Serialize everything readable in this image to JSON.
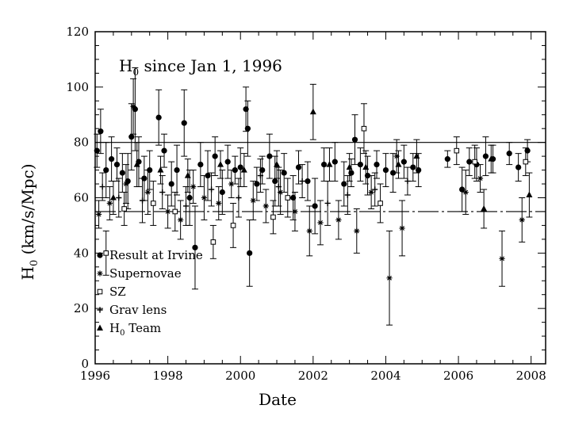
{
  "chart_data": {
    "type": "scatter",
    "title_main": "H",
    "title_sub": "0",
    "title_rest": " since Jan 1, 1996",
    "xlabel": "Date",
    "ylabel_main": "H",
    "ylabel_sub": "0",
    "ylabel_rest": " (km/s/Mpc)",
    "xlim": [
      1996,
      2008.4
    ],
    "ylim": [
      0,
      120
    ],
    "xticks": [
      1996,
      1998,
      2000,
      2002,
      2004,
      2006,
      2008
    ],
    "yticks": [
      0,
      20,
      40,
      60,
      80,
      100,
      120
    ],
    "grid": false,
    "reference_lines": [
      {
        "y": 80,
        "style": "solid"
      },
      {
        "y": 55,
        "style": "dashed"
      }
    ],
    "legend_placement": "bottom-left",
    "legend": [
      {
        "marker": "circle",
        "label": "Result at Irvine"
      },
      {
        "marker": "star",
        "label": "Supernovae"
      },
      {
        "marker": "square",
        "label": "SZ"
      },
      {
        "marker": "cross",
        "label": "Grav lens"
      },
      {
        "marker": "triangle",
        "label": "Team",
        "prefix": "H",
        "prefix_sub": "0"
      }
    ],
    "series": [
      {
        "name": "Result at Irvine",
        "marker": "circle",
        "points": [
          [
            1996.05,
            77,
            6
          ],
          [
            1996.15,
            84,
            8
          ],
          [
            1996.3,
            70,
            10
          ],
          [
            1996.45,
            74,
            8
          ],
          [
            1996.6,
            72,
            6
          ],
          [
            1996.75,
            69,
            7
          ],
          [
            1996.9,
            66,
            10
          ],
          [
            1997.0,
            82,
            12
          ],
          [
            1997.1,
            92,
            15
          ],
          [
            1997.2,
            73,
            9
          ],
          [
            1997.35,
            67,
            8
          ],
          [
            1997.5,
            70,
            7
          ],
          [
            1997.75,
            89,
            10
          ],
          [
            1997.9,
            77,
            6
          ],
          [
            1998.1,
            65,
            8
          ],
          [
            1998.25,
            70,
            9
          ],
          [
            1998.45,
            87,
            12
          ],
          [
            1998.6,
            60,
            10
          ],
          [
            1998.75,
            42,
            15
          ],
          [
            1998.9,
            72,
            8
          ],
          [
            1999.1,
            68,
            9
          ],
          [
            1999.3,
            75,
            7
          ],
          [
            1999.5,
            62,
            8
          ],
          [
            1999.65,
            73,
            6
          ],
          [
            1999.85,
            70,
            5
          ],
          [
            2000.0,
            71,
            7
          ],
          [
            2000.15,
            92,
            8
          ],
          [
            2000.2,
            85,
            10
          ],
          [
            2000.25,
            40,
            12
          ],
          [
            2000.45,
            65,
            6
          ],
          [
            2000.6,
            70,
            5
          ],
          [
            2000.8,
            75,
            8
          ],
          [
            2000.95,
            66,
            9
          ],
          [
            2001.2,
            69,
            7
          ],
          [
            2001.45,
            60,
            8
          ],
          [
            2001.6,
            71,
            6
          ],
          [
            2001.85,
            66,
            7
          ],
          [
            2002.05,
            57,
            10
          ],
          [
            2002.3,
            72,
            6
          ],
          [
            2002.6,
            73,
            7
          ],
          [
            2002.85,
            65,
            8
          ],
          [
            2003.05,
            69,
            5
          ],
          [
            2003.15,
            81,
            9
          ],
          [
            2003.3,
            72,
            6
          ],
          [
            2003.5,
            68,
            7
          ],
          [
            2003.75,
            72,
            5
          ],
          [
            2004.0,
            70,
            6
          ],
          [
            2004.2,
            69,
            7
          ],
          [
            2004.5,
            73,
            6
          ],
          [
            2004.75,
            71,
            5
          ],
          [
            2004.9,
            70,
            6
          ],
          [
            2005.7,
            74,
            3
          ],
          [
            2006.1,
            63,
            8
          ],
          [
            2006.3,
            73,
            5
          ],
          [
            2006.5,
            72,
            6
          ],
          [
            2006.75,
            75,
            7
          ],
          [
            2006.95,
            74,
            5
          ],
          [
            2007.4,
            76,
            4
          ],
          [
            2007.65,
            71,
            5
          ],
          [
            2007.9,
            77,
            4
          ]
        ]
      },
      {
        "name": "Supernovae",
        "marker": "star",
        "points": [
          [
            1996.1,
            54,
            5
          ],
          [
            1996.4,
            58,
            6
          ],
          [
            1996.85,
            65,
            7
          ],
          [
            1997.05,
            93,
            10
          ],
          [
            1997.45,
            62,
            8
          ],
          [
            1998.0,
            55,
            6
          ],
          [
            1998.35,
            52,
            7
          ],
          [
            1998.7,
            64,
            6
          ],
          [
            1999.0,
            60,
            8
          ],
          [
            1999.4,
            58,
            6
          ],
          [
            1999.75,
            65,
            5
          ],
          [
            2000.35,
            59,
            7
          ],
          [
            2000.7,
            57,
            6
          ],
          [
            2001.1,
            62,
            8
          ],
          [
            2001.5,
            55,
            7
          ],
          [
            2001.9,
            48,
            9
          ],
          [
            2002.2,
            51,
            8
          ],
          [
            2002.7,
            52,
            7
          ],
          [
            2003.2,
            48,
            8
          ],
          [
            2003.6,
            62,
            6
          ],
          [
            2004.1,
            31,
            17
          ],
          [
            2004.3,
            75,
            6
          ],
          [
            2004.45,
            49,
            10
          ],
          [
            2006.2,
            62,
            8
          ],
          [
            2006.6,
            67,
            5
          ],
          [
            2007.2,
            38,
            10
          ],
          [
            2007.75,
            52,
            8
          ]
        ]
      },
      {
        "name": "SZ",
        "marker": "square",
        "points": [
          [
            1996.3,
            40,
            8
          ],
          [
            1996.8,
            56,
            6
          ],
          [
            1997.6,
            58,
            8
          ],
          [
            1998.2,
            55,
            7
          ],
          [
            1999.25,
            44,
            6
          ],
          [
            1999.8,
            50,
            8
          ],
          [
            2000.9,
            53,
            6
          ],
          [
            2001.3,
            60,
            7
          ],
          [
            2003.4,
            85,
            9
          ],
          [
            2003.85,
            58,
            7
          ],
          [
            2005.95,
            77,
            5
          ],
          [
            2006.45,
            73,
            6
          ],
          [
            2007.85,
            73,
            5
          ]
        ]
      },
      {
        "name": "Grav lens",
        "marker": "cross",
        "points": [
          [
            1996.2,
            64,
            5
          ],
          [
            1996.65,
            60,
            7
          ],
          [
            1997.3,
            59,
            8
          ],
          [
            1997.85,
            62,
            6
          ],
          [
            1998.5,
            57,
            7
          ],
          [
            1999.2,
            63,
            6
          ],
          [
            1999.95,
            60,
            7
          ],
          [
            2000.55,
            68,
            6
          ],
          [
            2001.05,
            64,
            7
          ],
          [
            2001.7,
            66,
            6
          ],
          [
            2002.4,
            58,
            8
          ],
          [
            2002.95,
            61,
            7
          ],
          [
            2003.7,
            63,
            6
          ],
          [
            2004.6,
            66,
            5
          ]
        ]
      },
      {
        "name": "H0 Team",
        "marker": "triangle",
        "points": [
          [
            1996.5,
            60,
            6
          ],
          [
            1997.15,
            72,
            8
          ],
          [
            1997.8,
            70,
            5
          ],
          [
            1998.55,
            68,
            6
          ],
          [
            1999.45,
            72,
            5
          ],
          [
            2000.1,
            70,
            6
          ],
          [
            2001.0,
            72,
            5
          ],
          [
            2002.0,
            91,
            10
          ],
          [
            2002.45,
            72,
            6
          ],
          [
            2003.0,
            71,
            5
          ],
          [
            2003.45,
            71,
            6
          ],
          [
            2004.35,
            72,
            5
          ],
          [
            2004.85,
            75,
            6
          ],
          [
            2006.7,
            56,
            7
          ],
          [
            2006.9,
            74,
            5
          ],
          [
            2007.95,
            61,
            8
          ]
        ]
      }
    ]
  }
}
